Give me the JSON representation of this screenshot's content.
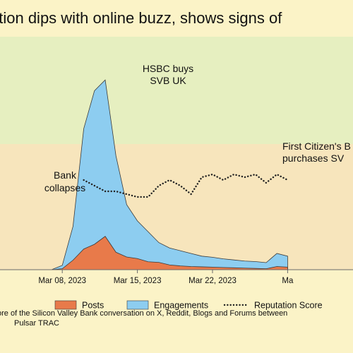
{
  "title": "ation dips with online buzz, shows signs of",
  "footnote": {
    "line1": "ore of the Silicon Valley Bank conversation on X, Reddit, Blogs and Forums between",
    "line2": "Pulsar TRAC"
  },
  "colors": {
    "background": "#fbf3c7",
    "band_high": "#e6efc0",
    "band_mid": "#f7e5bc",
    "posts": "#e87a4a",
    "engagements": "#8dcdf0",
    "outline": "#3a3a3a",
    "reputation": "#222222"
  },
  "chart_data": {
    "type": "area",
    "x_start": "2023-03-02",
    "x": [
      "2023-03-02",
      "2023-03-03",
      "2023-03-04",
      "2023-03-05",
      "2023-03-06",
      "2023-03-07",
      "2023-03-08",
      "2023-03-09",
      "2023-03-10",
      "2023-03-11",
      "2023-03-12",
      "2023-03-13",
      "2023-03-14",
      "2023-03-15",
      "2023-03-16",
      "2023-03-17",
      "2023-03-18",
      "2023-03-19",
      "2023-03-20",
      "2023-03-21",
      "2023-03-22",
      "2023-03-23",
      "2023-03-24",
      "2023-03-25",
      "2023-03-26",
      "2023-03-27",
      "2023-03-28",
      "2023-03-29"
    ],
    "xticks": [
      "Mar 08, 2023",
      "Mar 15, 2023",
      "Mar 22, 2023",
      "Ma"
    ],
    "xtick_dates": [
      "2023-03-08",
      "2023-03-15",
      "2023-03-22",
      "2023-03-29"
    ],
    "series": [
      {
        "name": "Posts",
        "style": "area",
        "values": [
          0,
          0,
          0,
          0,
          0,
          0,
          0.3,
          3,
          6.5,
          8,
          10.5,
          5.5,
          4,
          3.5,
          2.5,
          2.3,
          1.5,
          1.2,
          1.0,
          0.9,
          0.8,
          0.7,
          0.6,
          0.5,
          0.4,
          0.3,
          1.0,
          0.8
        ]
      },
      {
        "name": "Engagements",
        "style": "stacked-area",
        "values": [
          0,
          0,
          0,
          0,
          0,
          0,
          0.8,
          8,
          26,
          33,
          35,
          21,
          12,
          9,
          7,
          5,
          4,
          3.5,
          3,
          2.5,
          2.3,
          2,
          1.8,
          1.6,
          1.5,
          1.3,
          3.0,
          2.5
        ]
      },
      {
        "name": "Reputation Score",
        "style": "dotted-line",
        "values": [
          null,
          null,
          null,
          null,
          null,
          null,
          null,
          null,
          32,
          30,
          28,
          28,
          27,
          26,
          26,
          30,
          32,
          30,
          27,
          33,
          34,
          32,
          34,
          33,
          34,
          31,
          34,
          32
        ]
      }
    ],
    "annotations": [
      {
        "text": [
          "HSBC buys",
          "SVB UK"
        ],
        "date": "2023-03-13"
      },
      {
        "text": [
          "Bank",
          "collapses"
        ],
        "date": "2023-03-10"
      },
      {
        "text": [
          "First Citizen's B",
          "purchases SV"
        ],
        "date": "2023-03-27"
      }
    ],
    "legend": {
      "position": "bottom"
    },
    "grid": false
  }
}
